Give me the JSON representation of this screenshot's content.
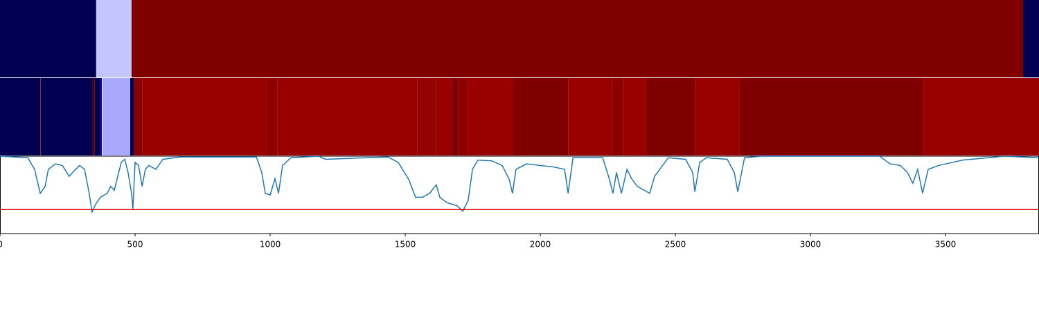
{
  "chart_data": [
    {
      "type": "strip",
      "xlim": [
        0,
        3846
      ],
      "segments": [
        {
          "start": 0,
          "end": 356,
          "color": "#000050"
        },
        {
          "start": 356,
          "end": 487,
          "color": "#c4c4ff"
        },
        {
          "start": 487,
          "end": 3787,
          "color": "#800000"
        },
        {
          "start": 3787,
          "end": 3846,
          "color": "#000050"
        }
      ]
    },
    {
      "type": "strip",
      "xlim": [
        0,
        3846
      ],
      "segments": [
        {
          "start": 0,
          "end": 149,
          "color": "#000050"
        },
        {
          "start": 149,
          "end": 151,
          "color": "#990000"
        },
        {
          "start": 151,
          "end": 341,
          "color": "#000050"
        },
        {
          "start": 341,
          "end": 351,
          "color": "#500010"
        },
        {
          "start": 351,
          "end": 372,
          "color": "#000050"
        },
        {
          "start": 372,
          "end": 377,
          "color": "#0000e0"
        },
        {
          "start": 377,
          "end": 379,
          "color": "#ffffff"
        },
        {
          "start": 379,
          "end": 482,
          "color": "#a8a8ff"
        },
        {
          "start": 482,
          "end": 495,
          "color": "#000050"
        },
        {
          "start": 495,
          "end": 526,
          "color": "#880000"
        },
        {
          "start": 526,
          "end": 987,
          "color": "#990000"
        },
        {
          "start": 987,
          "end": 1026,
          "color": "#8c0000"
        },
        {
          "start": 1026,
          "end": 1544,
          "color": "#990000"
        },
        {
          "start": 1544,
          "end": 1615,
          "color": "#950000"
        },
        {
          "start": 1615,
          "end": 1672,
          "color": "#990000"
        },
        {
          "start": 1672,
          "end": 1697,
          "color": "#800000"
        },
        {
          "start": 1697,
          "end": 1733,
          "color": "#8c0000"
        },
        {
          "start": 1733,
          "end": 1900,
          "color": "#990000"
        },
        {
          "start": 1900,
          "end": 2103,
          "color": "#800000"
        },
        {
          "start": 2103,
          "end": 2269,
          "color": "#990000"
        },
        {
          "start": 2269,
          "end": 2308,
          "color": "#8c0000"
        },
        {
          "start": 2308,
          "end": 2392,
          "color": "#990000"
        },
        {
          "start": 2392,
          "end": 2572,
          "color": "#800000"
        },
        {
          "start": 2572,
          "end": 2736,
          "color": "#990000"
        },
        {
          "start": 2736,
          "end": 3418,
          "color": "#800000"
        },
        {
          "start": 3418,
          "end": 3846,
          "color": "#990000"
        }
      ]
    },
    {
      "type": "line",
      "xlim": [
        0,
        3846
      ],
      "ylim": [
        0,
        1
      ],
      "xticks": [
        0,
        500,
        1000,
        1500,
        2000,
        2500,
        3000,
        3500
      ],
      "color": "#1f77b4",
      "hline": {
        "value": 0.31,
        "color": "#e00000"
      },
      "x": [
        0,
        103,
        128,
        149,
        167,
        179,
        205,
        231,
        256,
        269,
        295,
        313,
        328,
        341,
        354,
        372,
        397,
        410,
        423,
        436,
        449,
        462,
        474,
        487,
        492,
        500,
        513,
        526,
        538,
        551,
        577,
        603,
        667,
        949,
        969,
        982,
        1000,
        1018,
        1031,
        1046,
        1077,
        1179,
        1205,
        1436,
        1474,
        1513,
        1538,
        1564,
        1590,
        1615,
        1628,
        1654,
        1692,
        1713,
        1733,
        1749,
        1769,
        1820,
        1859,
        1885,
        1897,
        1910,
        1949,
        2051,
        2090,
        2103,
        2121,
        2231,
        2256,
        2269,
        2282,
        2300,
        2321,
        2338,
        2359,
        2385,
        2405,
        2423,
        2474,
        2538,
        2564,
        2572,
        2590,
        2615,
        2692,
        2718,
        2731,
        2756,
        2820,
        3256,
        3295,
        3333,
        3359,
        3379,
        3397,
        3415,
        3436,
        3474,
        3513,
        3564,
        3718,
        3846
      ],
      "values": [
        1.0,
        0.98,
        0.83,
        0.52,
        0.61,
        0.83,
        0.9,
        0.88,
        0.74,
        0.79,
        0.88,
        0.83,
        0.56,
        0.28,
        0.38,
        0.47,
        0.52,
        0.61,
        0.56,
        0.74,
        0.92,
        0.96,
        0.79,
        0.52,
        0.32,
        0.92,
        0.88,
        0.61,
        0.83,
        0.88,
        0.83,
        0.96,
        0.99,
        0.99,
        0.79,
        0.52,
        0.5,
        0.71,
        0.52,
        0.88,
        0.98,
        1.0,
        0.96,
        0.99,
        0.92,
        0.7,
        0.47,
        0.47,
        0.52,
        0.63,
        0.47,
        0.4,
        0.36,
        0.29,
        0.43,
        0.83,
        0.95,
        0.94,
        0.88,
        0.7,
        0.52,
        0.83,
        0.9,
        0.86,
        0.83,
        0.52,
        0.98,
        0.98,
        0.7,
        0.52,
        0.79,
        0.52,
        0.83,
        0.71,
        0.61,
        0.56,
        0.52,
        0.74,
        0.98,
        0.96,
        0.79,
        0.54,
        0.92,
        0.98,
        0.96,
        0.79,
        0.54,
        0.98,
        1.0,
        1.0,
        0.9,
        0.88,
        0.79,
        0.65,
        0.83,
        0.52,
        0.83,
        0.88,
        0.91,
        0.95,
        1.0,
        0.98
      ]
    }
  ]
}
